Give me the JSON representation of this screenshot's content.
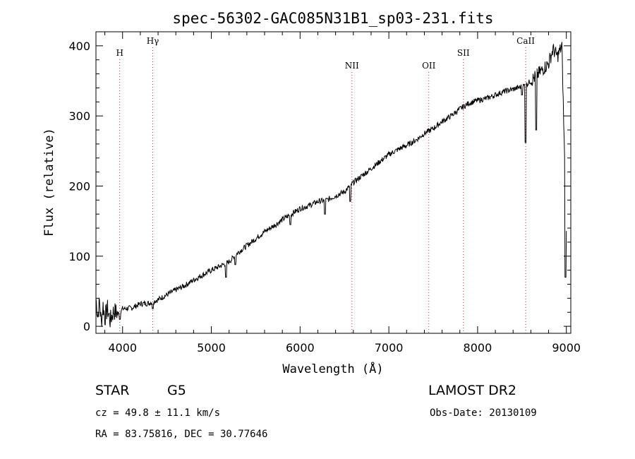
{
  "chart_data": {
    "type": "line",
    "title": "spec-56302-GAC085N31B1_sp03-231.fits",
    "xlabel": "Wavelength (Å)",
    "ylabel": "Flux (relative)",
    "xlim": [
      3700,
      9050
    ],
    "ylim": [
      -10,
      420
    ],
    "x_ticks": [
      "4000",
      "5000",
      "6000",
      "7000",
      "8000",
      "9000"
    ],
    "y_ticks": [
      "0",
      "100",
      "200",
      "300",
      "400"
    ],
    "series": [
      {
        "points": [
          [
            3700,
            40
          ],
          [
            3720,
            15
          ],
          [
            3740,
            35
          ],
          [
            3760,
            5
          ],
          [
            3780,
            30
          ],
          [
            3800,
            12
          ],
          [
            3830,
            25
          ],
          [
            3860,
            8
          ],
          [
            3900,
            22
          ],
          [
            3950,
            18
          ],
          [
            4000,
            25
          ],
          [
            4100,
            26
          ],
          [
            4200,
            32
          ],
          [
            4300,
            33
          ],
          [
            4400,
            38
          ],
          [
            4500,
            45
          ],
          [
            4600,
            52
          ],
          [
            4700,
            58
          ],
          [
            4800,
            66
          ],
          [
            4900,
            73
          ],
          [
            5000,
            80
          ],
          [
            5100,
            86
          ],
          [
            5200,
            92
          ],
          [
            5300,
            105
          ],
          [
            5400,
            115
          ],
          [
            5500,
            125
          ],
          [
            5600,
            135
          ],
          [
            5700,
            143
          ],
          [
            5800,
            152
          ],
          [
            5900,
            160
          ],
          [
            6000,
            168
          ],
          [
            6100,
            172
          ],
          [
            6200,
            178
          ],
          [
            6300,
            180
          ],
          [
            6400,
            186
          ],
          [
            6500,
            192
          ],
          [
            6600,
            205
          ],
          [
            6700,
            215
          ],
          [
            6800,
            225
          ],
          [
            6900,
            235
          ],
          [
            7000,
            245
          ],
          [
            7100,
            252
          ],
          [
            7200,
            258
          ],
          [
            7300,
            265
          ],
          [
            7400,
            275
          ],
          [
            7500,
            282
          ],
          [
            7600,
            292
          ],
          [
            7700,
            300
          ],
          [
            7800,
            310
          ],
          [
            7900,
            318
          ],
          [
            8000,
            322
          ],
          [
            8100,
            325
          ],
          [
            8200,
            330
          ],
          [
            8300,
            335
          ],
          [
            8400,
            338
          ],
          [
            8500,
            342
          ],
          [
            8550,
            345
          ],
          [
            8600,
            350
          ],
          [
            8700,
            362
          ],
          [
            8800,
            375
          ],
          [
            8850,
            395
          ],
          [
            8900,
            385
          ],
          [
            8950,
            400
          ],
          [
            9000,
            130
          ]
        ],
        "dips": [
          [
            3970,
            10
          ],
          [
            4340,
            25
          ],
          [
            5167,
            70
          ],
          [
            5270,
            88
          ],
          [
            5890,
            145
          ],
          [
            6280,
            160
          ],
          [
            6563,
            178
          ],
          [
            8498,
            330
          ],
          [
            8542,
            262
          ],
          [
            8662,
            280
          ],
          [
            8990,
            70
          ]
        ]
      }
    ],
    "spectral_lines": [
      {
        "label": "H",
        "x": 3968
      },
      {
        "label": "Hγ",
        "x": 4340
      },
      {
        "label": "NII",
        "x": 6584
      },
      {
        "label": "OII",
        "x": 7450
      },
      {
        "label": "SII",
        "x": 7840
      },
      {
        "label": "CaII",
        "x": 8542
      }
    ]
  },
  "info": {
    "object_class": "STAR",
    "subclass": "G5",
    "survey": "LAMOST DR2",
    "cz": "cz = 49.8 ± 11.1 km/s",
    "obs_date": "Obs-Date: 20130109",
    "coords": "RA =  83.75816, DEC =  30.77646"
  }
}
